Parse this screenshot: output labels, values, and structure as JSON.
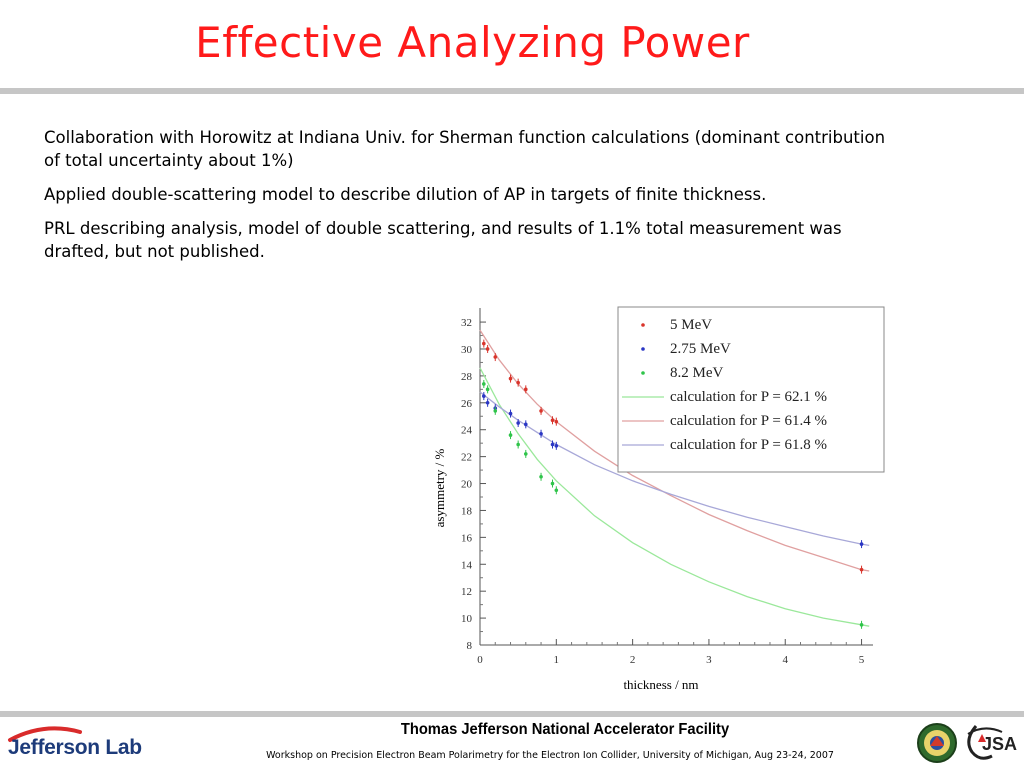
{
  "slide": {
    "title": "Effective Analyzing Power",
    "bullets": [
      "Collaboration with  Horowitz at Indiana Univ. for Sherman function calculations (dominant contribution of total uncertainty about 1%)",
      "Applied double-scattering model to describe dilution of AP in targets of finite thickness.",
      "PRL describing analysis, model of double scattering, and results of 1.1% total measurement was drafted, but not published."
    ]
  },
  "footer": {
    "organization": "Thomas Jefferson National Accelerator Facility",
    "workshop": "Workshop on Precision Electron Beam Polarimetry for the Electron Ion Collider, University of Michigan, Aug 23-24, 2007",
    "logo_left": "Jefferson Lab",
    "logo_right": "JSA"
  },
  "chart_data": {
    "type": "scatter",
    "title": "",
    "xlabel": "thickness / nm",
    "ylabel": "asymmetry / %",
    "xlim": [
      0,
      5.15
    ],
    "ylim": [
      8,
      32.6
    ],
    "xticks": [
      0,
      1,
      2,
      3,
      4,
      5
    ],
    "yticks": [
      8,
      10,
      12,
      14,
      16,
      18,
      20,
      22,
      24,
      26,
      28,
      30,
      32
    ],
    "legend_position": "top-right",
    "grid": false,
    "series": [
      {
        "name": "5 MeV",
        "color": "#d9342b",
        "points": [
          {
            "x": 0.05,
            "y": 30.4
          },
          {
            "x": 0.1,
            "y": 30.0
          },
          {
            "x": 0.2,
            "y": 29.4
          },
          {
            "x": 0.4,
            "y": 27.8
          },
          {
            "x": 0.5,
            "y": 27.5
          },
          {
            "x": 0.6,
            "y": 27.0
          },
          {
            "x": 0.8,
            "y": 25.4
          },
          {
            "x": 0.95,
            "y": 24.7
          },
          {
            "x": 1.0,
            "y": 24.6
          },
          {
            "x": 5.0,
            "y": 13.6
          }
        ]
      },
      {
        "name": "2.75 MeV",
        "color": "#2a36c4",
        "points": [
          {
            "x": 0.05,
            "y": 26.5
          },
          {
            "x": 0.1,
            "y": 26.0
          },
          {
            "x": 0.2,
            "y": 25.6
          },
          {
            "x": 0.4,
            "y": 25.2
          },
          {
            "x": 0.5,
            "y": 24.5
          },
          {
            "x": 0.6,
            "y": 24.4
          },
          {
            "x": 0.8,
            "y": 23.7
          },
          {
            "x": 0.95,
            "y": 22.9
          },
          {
            "x": 1.0,
            "y": 22.8
          },
          {
            "x": 5.0,
            "y": 15.5
          }
        ]
      },
      {
        "name": "8.2 MeV",
        "color": "#2fc44a",
        "points": [
          {
            "x": 0.05,
            "y": 27.4
          },
          {
            "x": 0.1,
            "y": 27.0
          },
          {
            "x": 0.2,
            "y": 25.4
          },
          {
            "x": 0.4,
            "y": 23.6
          },
          {
            "x": 0.5,
            "y": 22.9
          },
          {
            "x": 0.6,
            "y": 22.2
          },
          {
            "x": 0.8,
            "y": 20.5
          },
          {
            "x": 0.95,
            "y": 20.0
          },
          {
            "x": 1.0,
            "y": 19.5
          },
          {
            "x": 5.0,
            "y": 9.5
          }
        ]
      }
    ],
    "curves": [
      {
        "name": "calculation for P = 62.1 %",
        "color": "#9be89b",
        "points": [
          {
            "x": 0,
            "y": 28.6
          },
          {
            "x": 0.25,
            "y": 25.9
          },
          {
            "x": 0.5,
            "y": 23.7
          },
          {
            "x": 0.75,
            "y": 21.8
          },
          {
            "x": 1.0,
            "y": 20.2
          },
          {
            "x": 1.5,
            "y": 17.6
          },
          {
            "x": 2.0,
            "y": 15.6
          },
          {
            "x": 2.5,
            "y": 14.0
          },
          {
            "x": 3.0,
            "y": 12.7
          },
          {
            "x": 3.5,
            "y": 11.6
          },
          {
            "x": 4.0,
            "y": 10.7
          },
          {
            "x": 4.5,
            "y": 10.0
          },
          {
            "x": 5.0,
            "y": 9.5
          },
          {
            "x": 5.1,
            "y": 9.4
          }
        ]
      },
      {
        "name": "calculation for P = 61.4 %",
        "color": "#e0a0a0",
        "points": [
          {
            "x": 0,
            "y": 31.4
          },
          {
            "x": 0.25,
            "y": 29.2
          },
          {
            "x": 0.5,
            "y": 27.4
          },
          {
            "x": 0.75,
            "y": 25.9
          },
          {
            "x": 1.0,
            "y": 24.6
          },
          {
            "x": 1.5,
            "y": 22.4
          },
          {
            "x": 2.0,
            "y": 20.6
          },
          {
            "x": 2.5,
            "y": 19.1
          },
          {
            "x": 3.0,
            "y": 17.7
          },
          {
            "x": 3.5,
            "y": 16.5
          },
          {
            "x": 4.0,
            "y": 15.4
          },
          {
            "x": 4.5,
            "y": 14.5
          },
          {
            "x": 5.0,
            "y": 13.6
          },
          {
            "x": 5.1,
            "y": 13.5
          }
        ]
      },
      {
        "name": "calculation for P = 61.8 %",
        "color": "#a8a8d8",
        "points": [
          {
            "x": 0,
            "y": 26.8
          },
          {
            "x": 0.25,
            "y": 25.7
          },
          {
            "x": 0.5,
            "y": 24.7
          },
          {
            "x": 0.75,
            "y": 23.8
          },
          {
            "x": 1.0,
            "y": 22.9
          },
          {
            "x": 1.5,
            "y": 21.4
          },
          {
            "x": 2.0,
            "y": 20.2
          },
          {
            "x": 2.5,
            "y": 19.2
          },
          {
            "x": 3.0,
            "y": 18.3
          },
          {
            "x": 3.5,
            "y": 17.5
          },
          {
            "x": 4.0,
            "y": 16.8
          },
          {
            "x": 4.5,
            "y": 16.1
          },
          {
            "x": 5.0,
            "y": 15.5
          },
          {
            "x": 5.1,
            "y": 15.4
          }
        ]
      }
    ]
  }
}
